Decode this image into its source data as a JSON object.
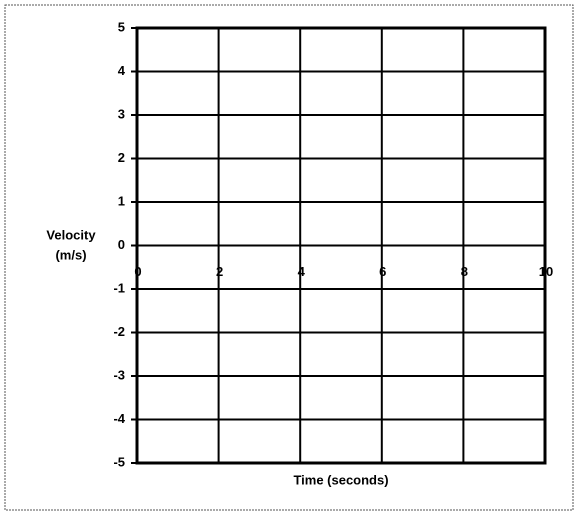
{
  "chart_data": {
    "type": "line",
    "xlabel": "Time (seconds)",
    "ylabel": [
      "Velocity",
      "(m/s)"
    ],
    "xlim": [
      0,
      10
    ],
    "xticks": [
      0,
      2,
      4,
      6,
      8,
      10
    ],
    "ylim": [
      -5,
      5
    ],
    "yticks": [
      5,
      4,
      3,
      2,
      1,
      0,
      -1,
      -2,
      -3,
      -4,
      -5
    ],
    "grid": true,
    "color": "#000000"
  }
}
